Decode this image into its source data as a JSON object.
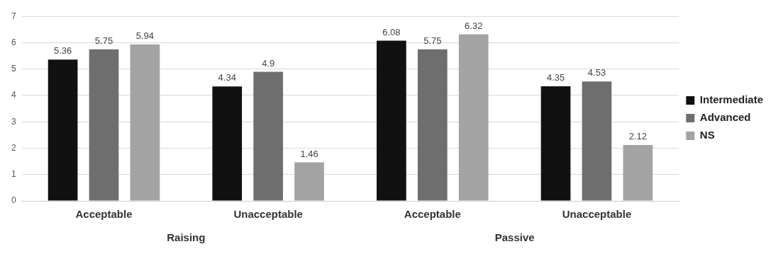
{
  "chart_data": {
    "type": "bar",
    "categories": [
      "Acceptable",
      "Unacceptable",
      "Acceptable",
      "Unacceptable"
    ],
    "series": [
      {
        "name": "Intermediate",
        "color": "#111111",
        "values": [
          5.36,
          4.34,
          6.08,
          4.35
        ]
      },
      {
        "name": "Advanced",
        "color": "#6e6e6e",
        "values": [
          5.75,
          4.9,
          5.75,
          4.53
        ]
      },
      {
        "name": "NS",
        "color": "#a3a3a3",
        "values": [
          5.94,
          1.46,
          6.32,
          2.12
        ]
      }
    ],
    "ylim": [
      0,
      7
    ],
    "yticks": [
      0,
      1,
      2,
      3,
      4,
      5,
      6,
      7
    ],
    "grid": "y",
    "legend": "right",
    "data_labels": true,
    "annotations": [
      "Raising",
      "Passive"
    ]
  }
}
